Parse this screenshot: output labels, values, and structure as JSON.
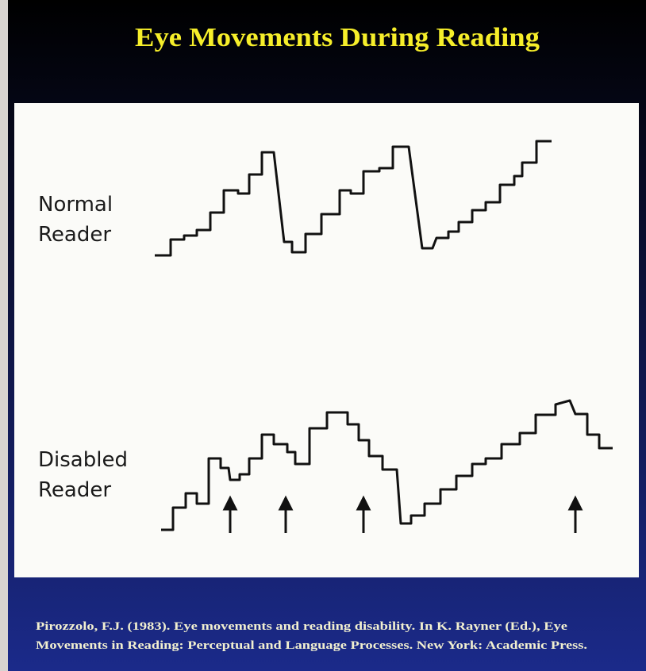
{
  "title": "Eye Movements During Reading",
  "labels": {
    "normal": [
      "Normal",
      "Reader"
    ],
    "disabled": [
      "Disabled",
      "Reader"
    ]
  },
  "citation": [
    "Pirozzolo, F.J. (1983). Eye movements and reading disability. In K. Rayner (Ed.), Eye",
    "Movements in Reading: Perceptual and Language Processes. New York: Academic Press."
  ]
}
